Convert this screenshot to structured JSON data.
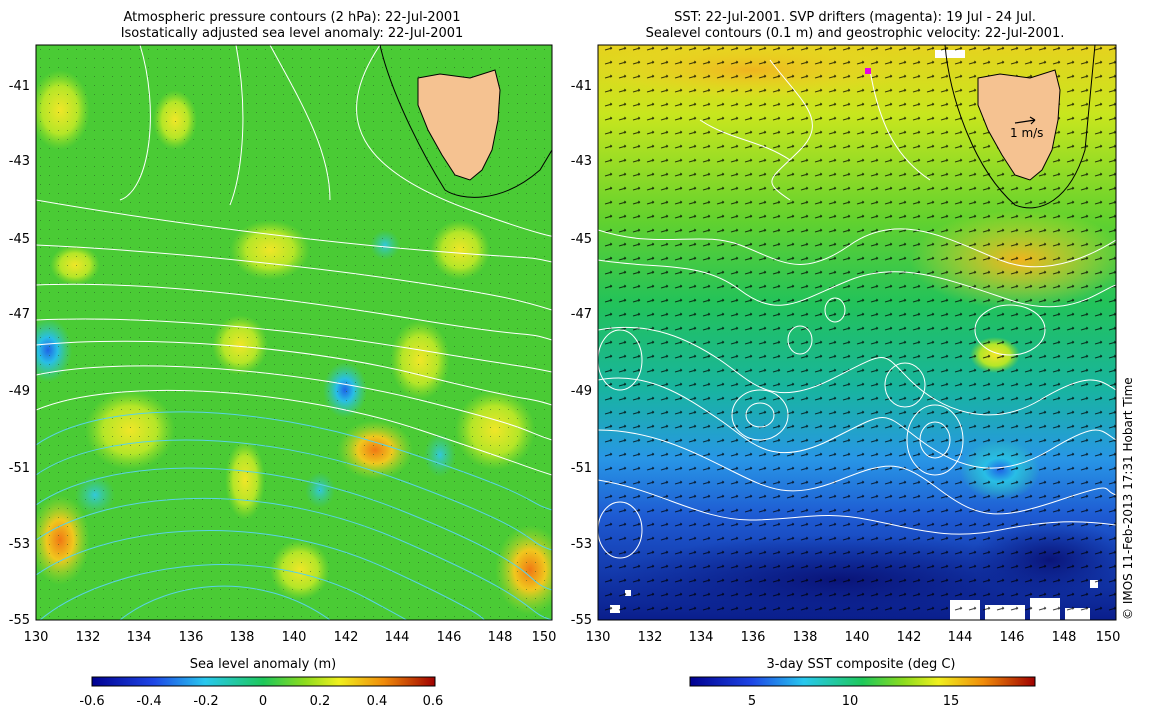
{
  "left_panel": {
    "title_line1": "Atmospheric pressure contours (2 hPa): 22-Jul-2001",
    "title_line2": "Isostatically adjusted sea level anomaly: 22-Jul-2001",
    "colorbar": {
      "label": "Sea level anomaly (m)",
      "ticks": [
        "-0.6",
        "-0.4",
        "-0.2",
        "0",
        "0.2",
        "0.4",
        "0.6"
      ]
    }
  },
  "right_panel": {
    "title_line1": "SST: 22-Jul-2001. SVP drifters (magenta): 19 Jul - 24 Jul.",
    "title_line2": "Sealevel contours (0.1 m) and geostrophic velocity: 22-Jul-2001.",
    "velocity_key": "1 m/s",
    "colorbar": {
      "label": "3-day SST composite (deg C)",
      "ticks": [
        "5",
        "10",
        "15"
      ]
    }
  },
  "credit": "© IMOS 11-Feb-2013 17:31 Hobart Time",
  "chart_data": [
    {
      "type": "heatmap",
      "title": "Atmospheric pressure contours (2 hPa): 22-Jul-2001 / Isostatically adjusted sea level anomaly: 22-Jul-2001",
      "x_tick_labels": [
        "130",
        "132",
        "134",
        "136",
        "138",
        "140",
        "142",
        "144",
        "146",
        "148",
        "150"
      ],
      "y_tick_labels": [
        "-41",
        "-43",
        "-45",
        "-47",
        "-49",
        "-51",
        "-53",
        "-55"
      ],
      "xlim": [
        130,
        150
      ],
      "ylim": [
        -55,
        -39.8
      ],
      "colorbar_label": "Sea level anomaly (m)",
      "colorbar_range": [
        -0.6,
        0.6
      ],
      "features": [
        {
          "label": "positive anomaly",
          "lon": 143.3,
          "lat": -50.5,
          "value": 0.4
        },
        {
          "label": "negative anomaly",
          "lon": 141.8,
          "lat": -48.9,
          "value": -0.3
        },
        {
          "label": "negative anomaly",
          "lon": 130.5,
          "lat": -48.0,
          "value": -0.25
        },
        {
          "label": "positive anomaly",
          "lon": 149.5,
          "lat": -53.8,
          "value": 0.35
        },
        {
          "label": "positive anomaly",
          "lon": 130.6,
          "lat": -52.9,
          "value": 0.3
        }
      ]
    },
    {
      "type": "heatmap",
      "title": "SST: 22-Jul-2001. SVP drifters (magenta): 19 Jul - 24 Jul. / Sealevel contours (0.1 m) and geostrophic velocity: 22-Jul-2001.",
      "x_tick_labels": [
        "130",
        "132",
        "134",
        "136",
        "138",
        "140",
        "142",
        "144",
        "146",
        "148",
        "150"
      ],
      "y_tick_labels": [
        "-41",
        "-43",
        "-45",
        "-47",
        "-49",
        "-51",
        "-53",
        "-55"
      ],
      "xlim": [
        130,
        150
      ],
      "ylim": [
        -55,
        -39.8
      ],
      "colorbar_label": "3-day SST composite (deg C)",
      "colorbar_range": [
        1,
        19
      ],
      "features": [
        {
          "label": "warm water",
          "lat_band": [
            -47,
            -40
          ],
          "sst_approx": 13
        },
        {
          "label": "cold water",
          "lat_band": [
            -55,
            -51
          ],
          "sst_approx": 3
        },
        {
          "label": "eddy",
          "lon": 143.5,
          "lat": -50.3
        },
        {
          "label": "eddy",
          "lon": 139.0,
          "lat": -49.8
        }
      ]
    }
  ]
}
